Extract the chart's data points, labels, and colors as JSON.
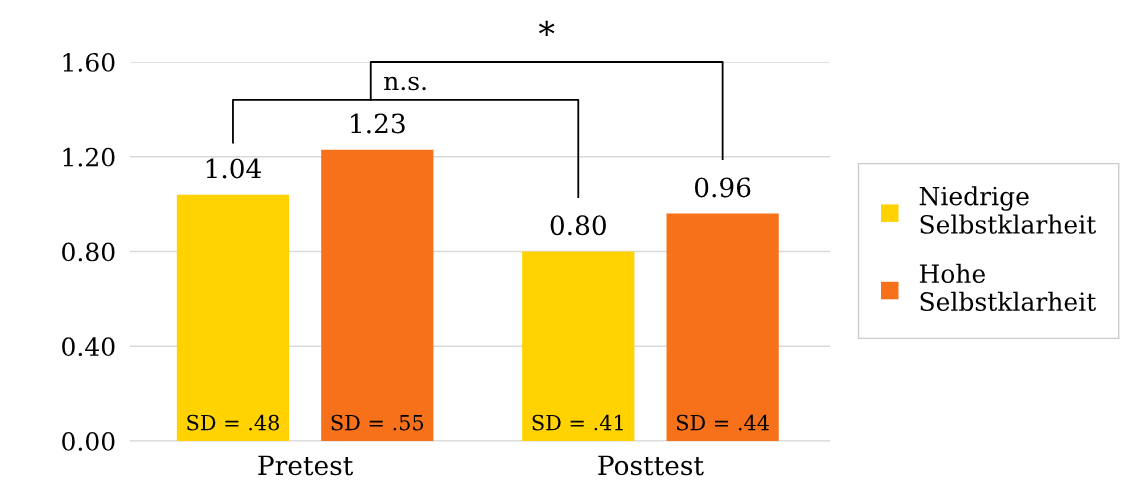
{
  "chart_data": {
    "type": "bar",
    "categories": [
      "Pretest",
      "Posttest"
    ],
    "series": [
      {
        "name": "Niedrige Selbstklarheit",
        "color": "#ffd200",
        "values": [
          1.04,
          0.8
        ],
        "value_labels": [
          "1.04",
          "0.80"
        ]
      },
      {
        "name": "Hohe Selbstklarheit",
        "color": "#f7701a",
        "values": [
          1.23,
          0.96
        ],
        "value_labels": [
          "1.23",
          "0.96"
        ]
      }
    ],
    "ylim": [
      0,
      1.6
    ],
    "yticks": [
      {
        "value": 0,
        "label": "0.00"
      },
      {
        "value": 0.4,
        "label": "0.40"
      },
      {
        "value": 0.8,
        "label": "0.80"
      },
      {
        "value": 1.2,
        "label": "1.20"
      },
      {
        "value": 1.6,
        "label": "1.60"
      }
    ],
    "grid": "y",
    "legend": "right",
    "annotations": [
      "SD = .48",
      "SD = .55",
      "SD = .41",
      "SD = .44",
      "n.s.",
      "*"
    ]
  }
}
